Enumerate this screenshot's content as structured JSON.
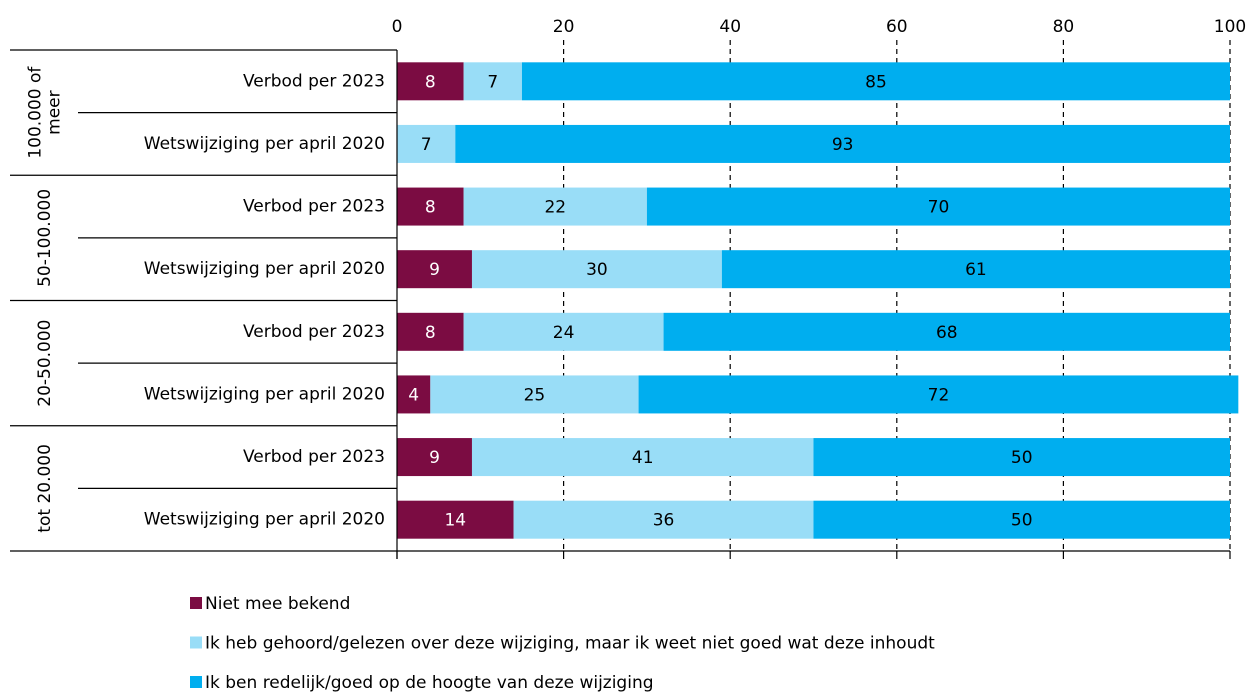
{
  "chart_data": {
    "type": "bar",
    "orientation": "horizontal",
    "stacked": true,
    "groups": [
      {
        "label": [
          "100.000 of",
          "meer"
        ],
        "categories": [
          "Verbod per 2023",
          "Wetswijziging per april 2020"
        ]
      },
      {
        "label": [
          "50-100.000"
        ],
        "categories": [
          "Verbod per 2023",
          "Wetswijziging per april 2020"
        ]
      },
      {
        "label": [
          "20-50.000"
        ],
        "categories": [
          "Verbod per 2023",
          "Wetswijziging per april 2020"
        ]
      },
      {
        "label": [
          "tot 20.000"
        ],
        "categories": [
          "Verbod per 2023",
          "Wetswijziging per april 2020"
        ]
      }
    ],
    "series": [
      {
        "name": "Niet mee bekend",
        "color": "#7b0c42",
        "label_color": "#ffffff",
        "values": [
          8,
          0,
          8,
          9,
          8,
          4,
          9,
          14
        ]
      },
      {
        "name": "Ik heb gehoord/gelezen over deze wijziging, maar ik weet niet goed wat deze inhoudt",
        "color": "#99ddf7",
        "label_color": "#000000",
        "values": [
          7,
          7,
          22,
          30,
          24,
          25,
          41,
          36
        ]
      },
      {
        "name": "Ik ben redelijk/goed op de hoogte van deze wijziging",
        "color": "#00aeef",
        "label_color": "#000000",
        "values": [
          85,
          93,
          70,
          61,
          68,
          72,
          50,
          50
        ]
      }
    ],
    "xlim": [
      0,
      100
    ],
    "xticks": [
      0,
      20,
      40,
      60,
      80,
      100
    ],
    "grid": true,
    "legend": "bottom"
  }
}
